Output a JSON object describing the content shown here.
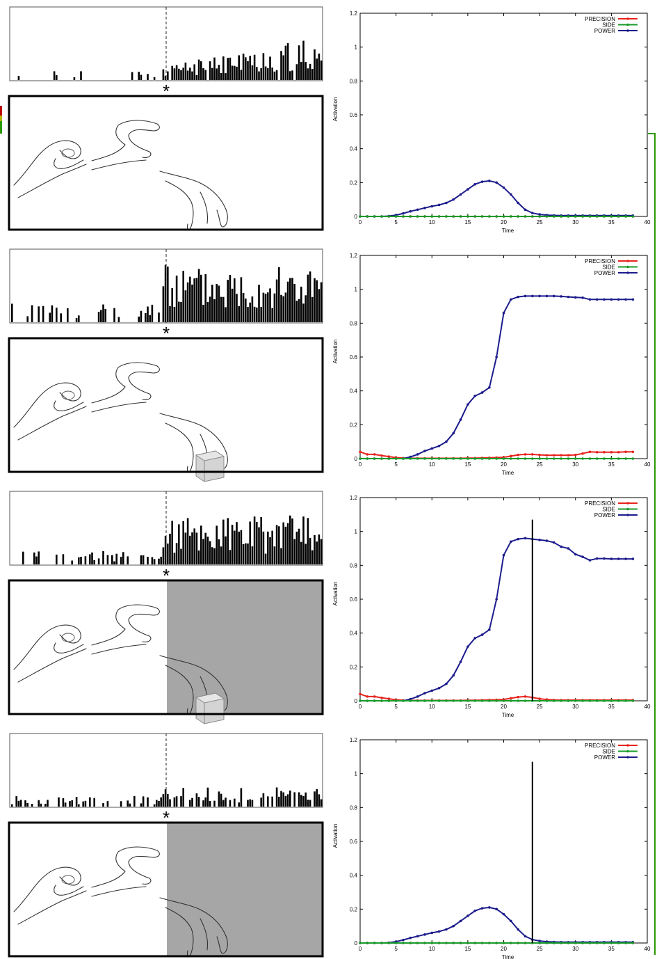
{
  "colors": {
    "precision": "#e8231c",
    "side": "#1a9a2a",
    "power": "#1c1c8c",
    "shade": "#a6a6a6",
    "frame": "#000000",
    "side_marks": [
      "#c00000",
      "#b8b800",
      "#2a9a00"
    ]
  },
  "rows": [
    {
      "star": "*",
      "hand_scene": {
        "object": "none",
        "occluded": false
      },
      "raster": {
        "seed": 11,
        "pre_rate": 0.18,
        "post_rate": 0.95,
        "pre_amp": 0.12,
        "post_amp": 0.45,
        "ramp": true
      }
    },
    {
      "star": "*",
      "hand_scene": {
        "object": "cube",
        "occluded": false
      },
      "raster": {
        "seed": 23,
        "pre_rate": 0.45,
        "post_rate": 1.0,
        "pre_amp": 0.22,
        "post_amp": 0.65,
        "ramp": false
      }
    },
    {
      "star": "*",
      "hand_scene": {
        "object": "cube",
        "occluded": true
      },
      "raster": {
        "seed": 37,
        "pre_rate": 0.45,
        "post_rate": 1.0,
        "pre_amp": 0.15,
        "post_amp": 0.58,
        "ramp": false
      }
    },
    {
      "star": "*",
      "hand_scene": {
        "object": "none",
        "occluded": true
      },
      "raster": {
        "seed": 53,
        "pre_rate": 0.55,
        "post_rate": 0.6,
        "pre_amp": 0.12,
        "post_amp": 0.22,
        "ramp": false
      }
    }
  ],
  "chart_data": [
    {
      "type": "line",
      "xlabel": "Time",
      "ylabel": "Activation",
      "xlim": [
        0,
        40
      ],
      "ylim": [
        0,
        1.2
      ],
      "xticks": [
        0,
        5,
        10,
        15,
        20,
        25,
        30,
        35,
        40
      ],
      "yticks": [
        0,
        0.2,
        0.4,
        0.6,
        0.8,
        1,
        1.2
      ],
      "legend_position": "top-right",
      "vline_x": null,
      "x": [
        0,
        1,
        2,
        3,
        4,
        5,
        6,
        7,
        8,
        9,
        10,
        11,
        12,
        13,
        14,
        15,
        16,
        17,
        18,
        19,
        20,
        21,
        22,
        23,
        24,
        25,
        26,
        27,
        28,
        29,
        30,
        31,
        32,
        33,
        34,
        35,
        36,
        37,
        38
      ],
      "series": [
        {
          "name": "PRECISION",
          "values": [
            0,
            0,
            0,
            0,
            0,
            0,
            0,
            0,
            0,
            0,
            0,
            0,
            0,
            0,
            0,
            0,
            0,
            0,
            0,
            0,
            0,
            0,
            0,
            0,
            0,
            0,
            0,
            0,
            0,
            0,
            0,
            0,
            0,
            0,
            0,
            0,
            0,
            0,
            0
          ]
        },
        {
          "name": "SIDE",
          "values": [
            0,
            0,
            0,
            0,
            0,
            0,
            0,
            0,
            0,
            0,
            0,
            0,
            0,
            0,
            0,
            0,
            0,
            0,
            0,
            0,
            0,
            0,
            0,
            0,
            0,
            0,
            0,
            0,
            0,
            0,
            0,
            0,
            0,
            0,
            0,
            0,
            0,
            0,
            0
          ]
        },
        {
          "name": "POWER",
          "values": [
            0,
            0,
            0,
            0,
            0.002,
            0.008,
            0.018,
            0.03,
            0.04,
            0.05,
            0.06,
            0.068,
            0.08,
            0.1,
            0.13,
            0.16,
            0.19,
            0.205,
            0.21,
            0.2,
            0.17,
            0.13,
            0.08,
            0.04,
            0.02,
            0.012,
            0.008,
            0.006,
            0.005,
            0.005,
            0.005,
            0.005,
            0.005,
            0.005,
            0.005,
            0.005,
            0.005,
            0.005,
            0.005
          ]
        }
      ]
    },
    {
      "type": "line",
      "xlabel": "Time",
      "ylabel": "Activation",
      "xlim": [
        0,
        40
      ],
      "ylim": [
        0,
        1.2
      ],
      "xticks": [
        0,
        5,
        10,
        15,
        20,
        25,
        30,
        35,
        40
      ],
      "yticks": [
        0,
        0.2,
        0.4,
        0.6,
        0.8,
        1,
        1.2
      ],
      "legend_position": "top-right",
      "vline_x": null,
      "x": [
        0,
        1,
        2,
        3,
        4,
        5,
        6,
        7,
        8,
        9,
        10,
        11,
        12,
        13,
        14,
        15,
        16,
        17,
        18,
        19,
        20,
        21,
        22,
        23,
        24,
        25,
        26,
        27,
        28,
        29,
        30,
        31,
        32,
        33,
        34,
        35,
        36,
        37,
        38
      ],
      "series": [
        {
          "name": "PRECISION",
          "values": [
            0.04,
            0.025,
            0.025,
            0.018,
            0.012,
            0.006,
            0.003,
            0.002,
            0.002,
            0.002,
            0.002,
            0.002,
            0.002,
            0.002,
            0.002,
            0.003,
            0.003,
            0.004,
            0.005,
            0.006,
            0.008,
            0.015,
            0.022,
            0.025,
            0.025,
            0.022,
            0.02,
            0.02,
            0.02,
            0.02,
            0.022,
            0.03,
            0.04,
            0.038,
            0.038,
            0.038,
            0.038,
            0.04,
            0.04
          ]
        },
        {
          "name": "SIDE",
          "values": [
            0,
            0,
            0,
            0,
            0,
            0,
            0,
            0,
            0,
            0,
            0,
            0,
            0,
            0,
            0,
            0,
            0,
            0,
            0,
            0,
            0,
            0,
            0,
            0,
            0,
            0,
            0,
            0,
            0,
            0,
            0,
            0,
            0,
            0,
            0,
            0,
            0,
            0,
            0
          ]
        },
        {
          "name": "POWER",
          "values": [
            0,
            0,
            0,
            0,
            0,
            0,
            0,
            0.01,
            0.025,
            0.045,
            0.06,
            0.075,
            0.1,
            0.15,
            0.23,
            0.32,
            0.37,
            0.39,
            0.42,
            0.6,
            0.86,
            0.94,
            0.955,
            0.96,
            0.96,
            0.96,
            0.96,
            0.96,
            0.958,
            0.955,
            0.952,
            0.95,
            0.94,
            0.94,
            0.94,
            0.94,
            0.94,
            0.94,
            0.94
          ]
        }
      ]
    },
    {
      "type": "line",
      "xlabel": "Time",
      "ylabel": "Activation",
      "xlim": [
        0,
        40
      ],
      "ylim": [
        0,
        1.2
      ],
      "xticks": [
        0,
        5,
        10,
        15,
        20,
        25,
        30,
        35,
        40
      ],
      "yticks": [
        0,
        0.2,
        0.4,
        0.6,
        0.8,
        1,
        1.2
      ],
      "legend_position": "top-right",
      "vline_x": 24,
      "x": [
        0,
        1,
        2,
        3,
        4,
        5,
        6,
        7,
        8,
        9,
        10,
        11,
        12,
        13,
        14,
        15,
        16,
        17,
        18,
        19,
        20,
        21,
        22,
        23,
        24,
        25,
        26,
        27,
        28,
        29,
        30,
        31,
        32,
        33,
        34,
        35,
        36,
        37,
        38
      ],
      "series": [
        {
          "name": "PRECISION",
          "values": [
            0.04,
            0.025,
            0.025,
            0.018,
            0.012,
            0.006,
            0.003,
            0.002,
            0.002,
            0.002,
            0.002,
            0.002,
            0.002,
            0.002,
            0.002,
            0.003,
            0.003,
            0.004,
            0.005,
            0.006,
            0.008,
            0.015,
            0.022,
            0.025,
            0.02,
            0.012,
            0.008,
            0.005,
            0.004,
            0.004,
            0.004,
            0.004,
            0.004,
            0.004,
            0.004,
            0.004,
            0.004,
            0.004,
            0.004
          ]
        },
        {
          "name": "SIDE",
          "values": [
            0,
            0,
            0,
            0,
            0,
            0,
            0,
            0,
            0,
            0,
            0,
            0,
            0,
            0,
            0,
            0,
            0,
            0,
            0,
            0,
            0,
            0,
            0,
            0,
            0,
            0,
            0,
            0,
            0,
            0,
            0,
            0,
            0,
            0,
            0,
            0,
            0,
            0,
            0
          ]
        },
        {
          "name": "POWER",
          "values": [
            0,
            0,
            0,
            0,
            0,
            0,
            0,
            0.01,
            0.025,
            0.045,
            0.06,
            0.075,
            0.1,
            0.15,
            0.23,
            0.32,
            0.37,
            0.39,
            0.42,
            0.6,
            0.86,
            0.94,
            0.955,
            0.96,
            0.955,
            0.95,
            0.945,
            0.935,
            0.91,
            0.9,
            0.865,
            0.85,
            0.83,
            0.84,
            0.84,
            0.838,
            0.838,
            0.838,
            0.838
          ]
        }
      ]
    },
    {
      "type": "line",
      "xlabel": "Time",
      "ylabel": "Activation",
      "xlim": [
        0,
        40
      ],
      "ylim": [
        0,
        1.2
      ],
      "xticks": [
        0,
        5,
        10,
        15,
        20,
        25,
        30,
        35,
        40
      ],
      "yticks": [
        0,
        0.2,
        0.4,
        0.6,
        0.8,
        1,
        1.2
      ],
      "legend_position": "top-right",
      "vline_x": 24,
      "x": [
        0,
        1,
        2,
        3,
        4,
        5,
        6,
        7,
        8,
        9,
        10,
        11,
        12,
        13,
        14,
        15,
        16,
        17,
        18,
        19,
        20,
        21,
        22,
        23,
        24,
        25,
        26,
        27,
        28,
        29,
        30,
        31,
        32,
        33,
        34,
        35,
        36,
        37,
        38
      ],
      "series": [
        {
          "name": "PRECISION",
          "values": [
            0,
            0,
            0,
            0,
            0,
            0,
            0,
            0,
            0,
            0,
            0,
            0,
            0,
            0,
            0,
            0,
            0,
            0,
            0,
            0,
            0,
            0,
            0,
            0,
            0,
            0,
            0,
            0,
            0,
            0,
            0,
            0,
            0,
            0,
            0,
            0,
            0,
            0,
            0
          ]
        },
        {
          "name": "SIDE",
          "values": [
            0,
            0,
            0,
            0,
            0,
            0,
            0,
            0,
            0,
            0,
            0,
            0,
            0,
            0,
            0,
            0,
            0,
            0,
            0,
            0,
            0,
            0,
            0,
            0,
            0,
            0,
            0,
            0,
            0,
            0,
            0,
            0,
            0,
            0,
            0,
            0,
            0,
            0,
            0
          ]
        },
        {
          "name": "POWER",
          "values": [
            0,
            0,
            0,
            0,
            0.002,
            0.008,
            0.018,
            0.03,
            0.04,
            0.05,
            0.06,
            0.068,
            0.08,
            0.1,
            0.13,
            0.16,
            0.19,
            0.205,
            0.21,
            0.2,
            0.17,
            0.13,
            0.08,
            0.04,
            0.02,
            0.012,
            0.008,
            0.006,
            0.005,
            0.005,
            0.005,
            0.005,
            0.005,
            0.005,
            0.005,
            0.005,
            0.005,
            0.005,
            0.005
          ]
        }
      ]
    }
  ]
}
